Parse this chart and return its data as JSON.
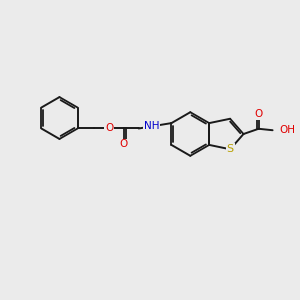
{
  "bg_color": "#ebebeb",
  "bond_color": "#1a1a1a",
  "atom_colors": {
    "S": "#b8a000",
    "O": "#e00000",
    "N": "#0000cc",
    "C": "#1a1a1a"
  },
  "figsize": [
    3.0,
    3.0
  ],
  "dpi": 100
}
